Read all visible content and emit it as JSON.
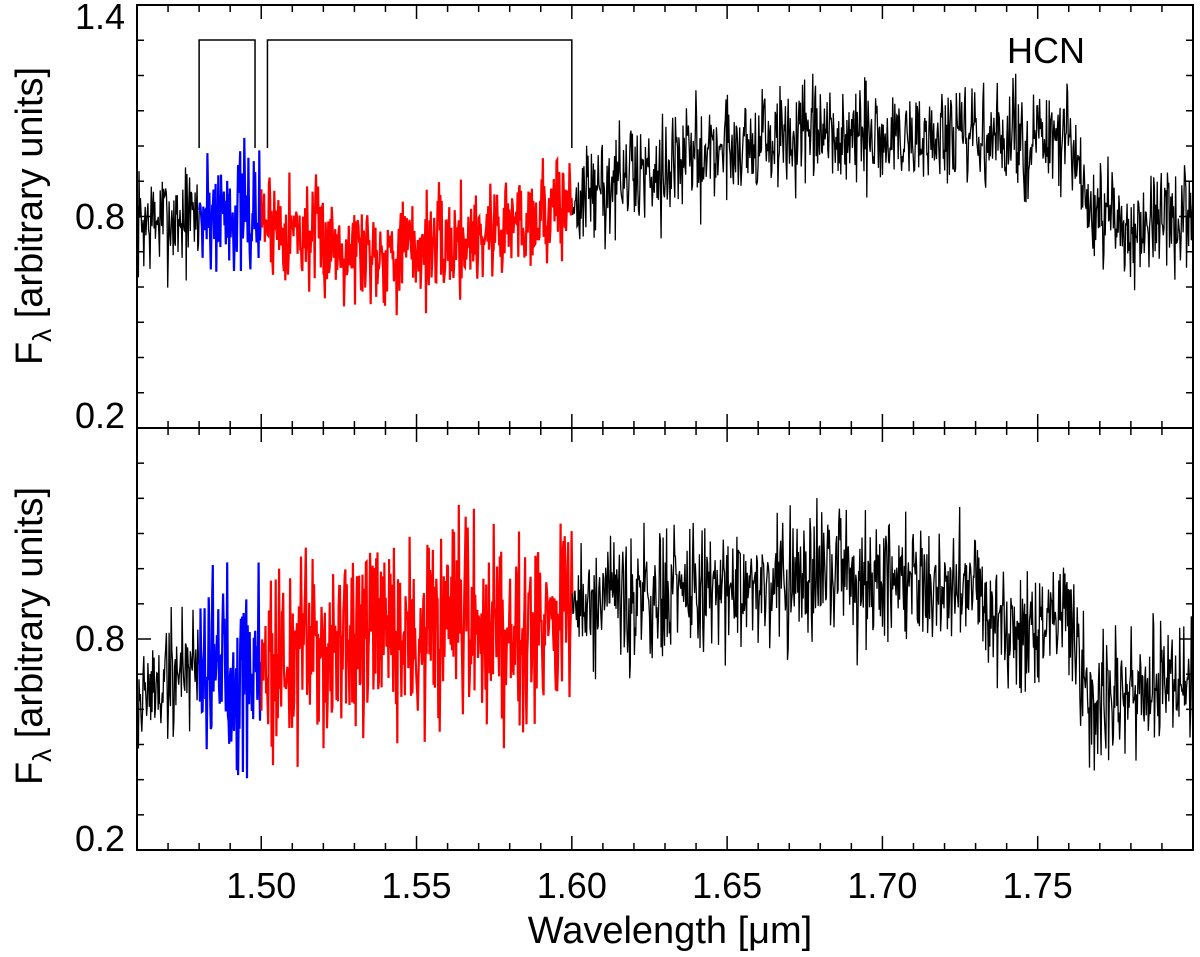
{
  "chart_data": [
    {
      "type": "line",
      "panel": "top",
      "annotation": "HCN",
      "ylabel": "F",
      "ylabel_sub": "λ",
      "ylabel_tail": " [arbitrary units]",
      "xlim": [
        1.46,
        1.8
      ],
      "ylim": [
        0.2,
        1.4
      ],
      "yticks": [
        "0.2",
        "0.8",
        "1.4"
      ],
      "brackets": [
        [
          1.48,
          1.498
        ],
        [
          1.502,
          1.6
        ]
      ],
      "colors": {
        "spectrum": "#000000",
        "blue_band": "#0000ff",
        "red_band": "#ff0000"
      },
      "bands": [
        {
          "range": [
            1.48,
            1.5
          ],
          "color": "blue"
        },
        {
          "range": [
            1.5,
            1.6
          ],
          "color": "red"
        }
      ],
      "series": [
        {
          "x": [
            1.46,
            1.48,
            1.49,
            1.5,
            1.52,
            1.54,
            1.56,
            1.58,
            1.6,
            1.62,
            1.65,
            1.67,
            1.7,
            1.73,
            1.76,
            1.767,
            1.78,
            1.8
          ],
          "values": [
            0.78,
            0.8,
            0.82,
            0.8,
            0.73,
            0.7,
            0.72,
            0.78,
            0.84,
            0.92,
            1.0,
            1.02,
            1.02,
            1.02,
            1.01,
            0.8,
            0.77,
            0.78
          ]
        }
      ]
    },
    {
      "type": "line",
      "panel": "bottom",
      "ylabel": "F",
      "ylabel_sub": "λ",
      "ylabel_tail": " [arbitrary units]",
      "xlabel": "Wavelength [μm]",
      "xlim": [
        1.46,
        1.8
      ],
      "ylim": [
        0.2,
        1.4
      ],
      "yticks": [
        "0.2",
        "0.8"
      ],
      "xticks": [
        1.5,
        1.55,
        1.6,
        1.65,
        1.7,
        1.75
      ],
      "xtick_labels": [
        "1.50",
        "1.55",
        "1.60",
        "1.65",
        "1.70",
        "1.75"
      ],
      "colors": {
        "spectrum": "#000000",
        "blue_band": "#0000ff",
        "red_band": "#ff0000"
      },
      "bands": [
        {
          "range": [
            1.48,
            1.5
          ],
          "color": "blue"
        },
        {
          "range": [
            1.5,
            1.6
          ],
          "color": "red"
        }
      ],
      "series": [
        {
          "x": [
            1.46,
            1.48,
            1.49,
            1.5,
            1.52,
            1.55,
            1.58,
            1.6,
            1.62,
            1.65,
            1.68,
            1.7,
            1.73,
            1.745,
            1.76,
            1.767,
            1.78,
            1.8
          ],
          "values": [
            0.62,
            0.75,
            0.72,
            0.72,
            0.78,
            0.8,
            0.85,
            0.88,
            0.9,
            0.95,
            0.98,
            0.99,
            0.95,
            0.78,
            0.9,
            0.62,
            0.65,
            0.68
          ]
        }
      ]
    }
  ]
}
